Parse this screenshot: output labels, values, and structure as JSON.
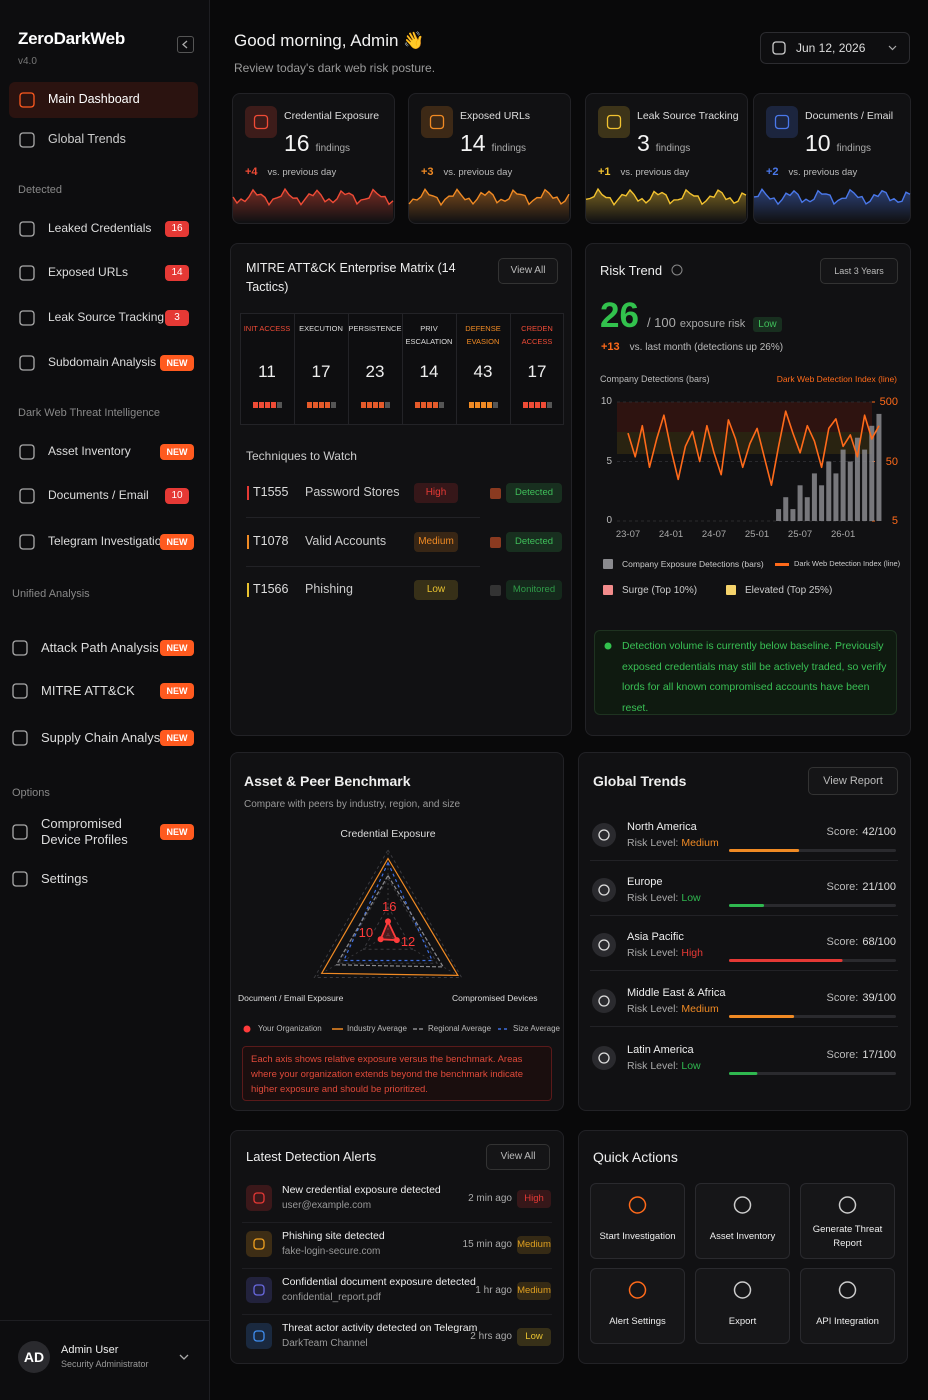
{
  "sidebar": {
    "brand": "ZeroDarkWeb",
    "version": "v4.0",
    "top": [
      {
        "label": "Main Dashboard"
      },
      {
        "label": "Global Trends"
      }
    ],
    "groups": [
      {
        "title": "Detected",
        "items": [
          {
            "label": "Leaked Credentials",
            "badge": 16
          },
          {
            "label": "Exposed URLs",
            "badge": 14
          },
          {
            "label": "Leak Source Tracking",
            "badge": 3
          },
          {
            "label": "Subdomain Analysis",
            "badge": "NEW"
          }
        ]
      },
      {
        "title": "Dark Web Threat Intelligence",
        "items": [
          {
            "label": "Asset Inventory",
            "badge": "NEW"
          },
          {
            "label": "Documents / Email",
            "badge": 10
          },
          {
            "label": "Telegram Investigation",
            "badge": "NEW"
          }
        ]
      },
      {
        "title": "Unified Analysis",
        "items": [
          {
            "label": "Attack Path Analysis",
            "badge": "NEW"
          },
          {
            "label": "MITRE ATT&CK",
            "badge": "NEW"
          },
          {
            "label": "Supply Chain Analysis",
            "badge": "NEW"
          }
        ]
      },
      {
        "title": "Options",
        "items": [
          {
            "label": "Compromised Device Profiles",
            "badge": "NEW"
          },
          {
            "label": "Settings"
          }
        ]
      }
    ],
    "user": {
      "initials": "AD",
      "name": "Admin User",
      "role": "Security Administrator"
    }
  },
  "header": {
    "greeting": "Good morning, Admin 👋",
    "subtitle": "Review today's dark web risk posture.",
    "date": "Jun 12, 2026"
  },
  "stats": [
    {
      "title": "Credential Exposure",
      "value": 16,
      "unit": "findings",
      "delta": "+4",
      "compare": "vs. previous day",
      "color": "#ef4b36"
    },
    {
      "title": "Exposed URLs",
      "value": 14,
      "unit": "findings",
      "delta": "+3",
      "compare": "vs. previous day",
      "color": "#f08a24"
    },
    {
      "title": "Leak Source Tracking",
      "value": 3,
      "unit": "findings",
      "delta": "+1",
      "compare": "vs. previous day",
      "color": "#f2c230"
    },
    {
      "title": "Documents / Email",
      "value": 10,
      "unit": "findings",
      "delta": "+2",
      "compare": "vs. previous day",
      "color": "#4a78ea"
    }
  ],
  "mitre": {
    "title": "MITRE ATT&CK Enterprise Matrix (14 Tactics)",
    "view_all": "View All",
    "tactics": [
      {
        "name": "INIT ACCESS",
        "count": 11,
        "color": "#ef4b36"
      },
      {
        "name": "EXECUTION",
        "count": 17,
        "color": "#dddddd"
      },
      {
        "name": "PERSISTENCE",
        "count": 23,
        "color": "#dddddd"
      },
      {
        "name": "PRIV ESCALATION",
        "count": 14,
        "color": "#dddddd"
      },
      {
        "name": "DEFENSE EVASION",
        "count": 43,
        "color": "#f08a24"
      },
      {
        "name": "CREDEN ACCESS",
        "count": 17,
        "color": "#ef4b36"
      }
    ],
    "techniques_title": "Techniques to Watch",
    "techniques": [
      {
        "id": "T1555",
        "name": "Password Stores",
        "severity": "High",
        "severity_color": "#e53935",
        "status": "Detected",
        "status_color": "#3fbf5a"
      },
      {
        "id": "T1078",
        "name": "Valid Accounts",
        "severity": "Medium",
        "severity_color": "#f08a24",
        "status": "Detected",
        "status_color": "#3fbf5a"
      },
      {
        "id": "T1566",
        "name": "Phishing",
        "severity": "Low",
        "severity_color": "#e8c230",
        "status": "Monitored",
        "status_color": "#2f9a48"
      }
    ]
  },
  "risk": {
    "title": "Risk Trend",
    "range": "Last 3 Years",
    "score": 26,
    "out_of": "/ 100",
    "label": "exposure risk",
    "level": "Low",
    "delta": "+13",
    "delta_text": "vs. last month (detections up 26%)",
    "left_axis_label": "Company Detections (bars)",
    "right_axis_label": "Dark Web Detection Index (line)",
    "chart": {
      "type": "bar",
      "categories": [
        "23-07",
        null,
        null,
        null,
        null,
        null,
        "24-01",
        null,
        null,
        null,
        null,
        null,
        "24-07",
        null,
        null,
        null,
        null,
        null,
        "25-01",
        null,
        null,
        null,
        null,
        null,
        "25-07",
        null,
        null,
        null,
        null,
        null,
        "26-01",
        null,
        null,
        null,
        null,
        null
      ],
      "series": [
        {
          "name": "Company Exposure Detections (bars)",
          "color": "#8a8a8e",
          "values": [
            0,
            0,
            0,
            0,
            0,
            0,
            0,
            0,
            0,
            0,
            0,
            0,
            0,
            0,
            0,
            0,
            0,
            0,
            0,
            0,
            0,
            1,
            2,
            1,
            3,
            2,
            4,
            3,
            5,
            4,
            6,
            5,
            7,
            6,
            8,
            9
          ]
        },
        {
          "name": "Dark Web Detection Index (line)",
          "color": "#ff6a1a",
          "axis": "y2",
          "type": "line",
          "values": [
            150,
            60,
            200,
            40,
            120,
            300,
            80,
            25,
            90,
            160,
            50,
            200,
            70,
            30,
            250,
            120,
            40,
            100,
            180,
            60,
            20,
            90,
            350,
            150,
            70,
            200,
            110,
            40,
            180,
            260,
            90,
            140,
            60,
            300,
            120,
            200
          ]
        }
      ],
      "ylim": [
        0,
        10
      ],
      "yticks": [
        0,
        5,
        10
      ],
      "y2lim": [
        5,
        500
      ],
      "y2ticks": [
        5,
        50,
        500
      ],
      "y2_scale": "log",
      "bands": [
        {
          "name": "Surge (Top 10%)",
          "color": "#f28b8b"
        },
        {
          "name": "Elevated (Top 25%)",
          "color": "#f5d36b"
        }
      ]
    },
    "note": "Detection volume is currently below baseline. Previously exposed credentials may still be actively traded, so verify lords for all known compromised accounts have been reset."
  },
  "benchmark": {
    "title": "Asset & Peer Benchmark",
    "subtitle": "Compare with peers by industry, region, and size",
    "chart": {
      "type": "radar",
      "axes": [
        "Credential Exposure",
        "Compromised Devices",
        "Document / Email Exposure"
      ],
      "rlim": [
        0,
        100
      ],
      "series": [
        {
          "name": "Your Organization",
          "color": "#ff3b3b",
          "values": [
            16,
            12,
            10
          ]
        },
        {
          "name": "Industry Average",
          "color": "#f08a24",
          "values": [
            90,
            95,
            90
          ]
        },
        {
          "name": "Regional Average",
          "color": "#8a8a8e",
          "values": [
            70,
            75,
            70
          ]
        },
        {
          "name": "Size Average",
          "color": "#3f6fe0",
          "values": [
            85,
            60,
            60
          ]
        }
      ]
    },
    "note": "Each axis shows relative exposure versus the benchmark. Areas where your organization extends beyond the benchmark indicate higher exposure and should be prioritized."
  },
  "global": {
    "title": "Global Trends",
    "view_report": "View Report",
    "risk_caption": "Risk Level:",
    "score_caption": "Score:",
    "regions": [
      {
        "name": "North America",
        "level": "Medium",
        "color": "#f08a24",
        "score": 42,
        "score_label": "42/100"
      },
      {
        "name": "Europe",
        "level": "Low",
        "color": "#2fb84f",
        "score": 21,
        "score_label": "21/100"
      },
      {
        "name": "Asia Pacific",
        "level": "High",
        "color": "#e53935",
        "score": 68,
        "score_label": "68/100"
      },
      {
        "name": "Middle East & Africa",
        "level": "Medium",
        "color": "#f08a24",
        "score": 39,
        "score_label": "39/100"
      },
      {
        "name": "Latin America",
        "level": "Low",
        "color": "#2fb84f",
        "score": 17,
        "score_label": "17/100"
      }
    ]
  },
  "alerts": {
    "title": "Latest Detection Alerts",
    "view_all": "View All",
    "items": [
      {
        "title": "New credential exposure detected",
        "detail": "user@example.com",
        "time": "2 min ago",
        "severity": "High",
        "severity_color": "#e53935",
        "icon_color": "#e53935"
      },
      {
        "title": "Phishing site detected",
        "detail": "fake-login-secure.com",
        "time": "15 min ago",
        "severity": "Medium",
        "severity_color": "#e0a020",
        "icon_color": "#f0a020"
      },
      {
        "title": "Confidential document exposure detected",
        "detail": "confidential_report.pdf",
        "time": "1 hr ago",
        "severity": "Medium",
        "severity_color": "#e0a020",
        "icon_color": "#6a6ae0"
      },
      {
        "title": "Threat actor activity detected on Telegram",
        "detail": "DarkTeam Channel",
        "time": "2 hrs ago",
        "severity": "Low",
        "severity_color": "#e8c230",
        "icon_color": "#3f8ef0"
      }
    ]
  },
  "quick_actions": {
    "title": "Quick Actions",
    "actions": [
      "Start Investigation",
      "Asset Inventory",
      "Generate Threat Report",
      "Alert Settings",
      "Export",
      "API Integration"
    ]
  }
}
